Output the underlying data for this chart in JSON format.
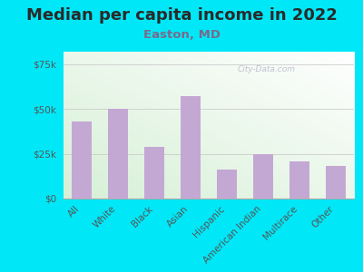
{
  "title": "Median per capita income in 2022",
  "subtitle": "Easton, MD",
  "categories": [
    "All",
    "White",
    "Black",
    "Asian",
    "Hispanic",
    "American Indian",
    "Multirace",
    "Other"
  ],
  "values": [
    43000,
    50000,
    29000,
    57000,
    16000,
    25000,
    21000,
    18000
  ],
  "bar_color": "#c4a8d4",
  "background_outer": "#00e8f8",
  "title_color": "#2a2a2a",
  "subtitle_color": "#7a6a8a",
  "ytick_label_color": "#555555",
  "xtick_label_color": "#555555",
  "ytick_labels": [
    "$0",
    "$25k",
    "$50k",
    "$75k"
  ],
  "ytick_values": [
    0,
    25000,
    50000,
    75000
  ],
  "ylim": [
    0,
    82000
  ],
  "watermark": "City-Data.com",
  "title_fontsize": 13,
  "subtitle_fontsize": 9.5,
  "ytick_fontsize": 7.5,
  "xtick_fontsize": 7.5,
  "grid_color": "#cccccc",
  "plot_bg_left": "#d8eecc",
  "plot_bg_right": "#f5fff5"
}
